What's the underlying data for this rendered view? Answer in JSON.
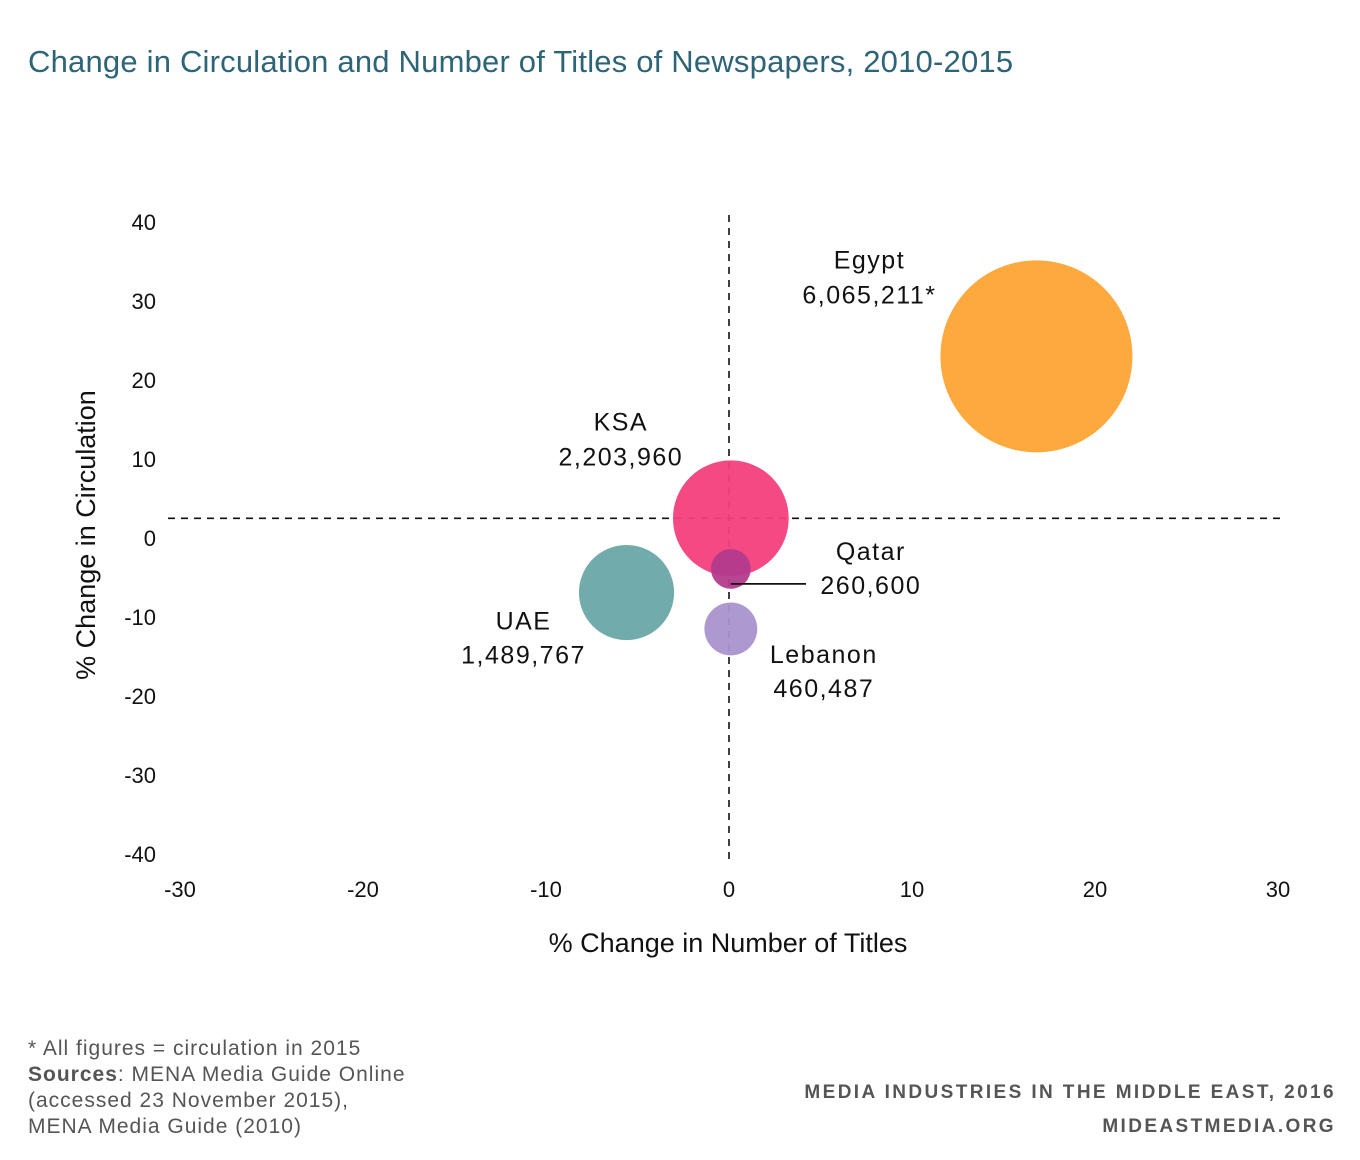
{
  "title": "Change in Circulation and Number of Titles of Newspapers, 2010-2015",
  "chart_data": {
    "type": "scatter",
    "title": "Change in Circulation and Number of Titles of Newspapers, 2010-2015",
    "xlabel": "% Change in Number of Titles",
    "ylabel": "% Change in Circulation",
    "xlim": [
      -30,
      30
    ],
    "ylim": [
      -40,
      40
    ],
    "x_ticks": [
      -30,
      -20,
      -10,
      0,
      10,
      20,
      30
    ],
    "y_ticks": [
      40,
      30,
      20,
      10,
      0,
      -10,
      -20,
      -30,
      -40
    ],
    "reference_lines": {
      "x": 0,
      "y": 3
    },
    "grid": false,
    "legend": "none",
    "points": [
      {
        "label": "Egypt",
        "value_label": "6,065,211*",
        "x": 16.8,
        "y": 23.5,
        "size": 6065211,
        "color": "#fea434"
      },
      {
        "label": "KSA",
        "value_label": "2,203,960",
        "x": 0.1,
        "y": 3,
        "size": 2203960,
        "color": "#f43f7c"
      },
      {
        "label": "UAE",
        "value_label": "1,489,767",
        "x": -5.6,
        "y": -6.4,
        "size": 1489767,
        "color": "#6aa6a6"
      },
      {
        "label": "Qatar",
        "value_label": "260,600",
        "x": 0.1,
        "y": -3.4,
        "size": 260600,
        "color": "#b33b8c"
      },
      {
        "label": "Lebanon",
        "value_label": "460,487",
        "x": 0.1,
        "y": -11,
        "size": 460487,
        "color": "#a994cc"
      }
    ]
  },
  "footnote": {
    "note": "* All figures = circulation in 2015",
    "sources_label": "Sources",
    "sources_text": ": MENA Media Guide Online",
    "sources_line2": "(accessed 23 November 2015),",
    "sources_line3": "MENA Media Guide (2010)"
  },
  "credits": {
    "line1": "MEDIA INDUSTRIES IN THE MIDDLE EAST, 2016",
    "line2": "MIDEASTMEDIA.ORG"
  }
}
